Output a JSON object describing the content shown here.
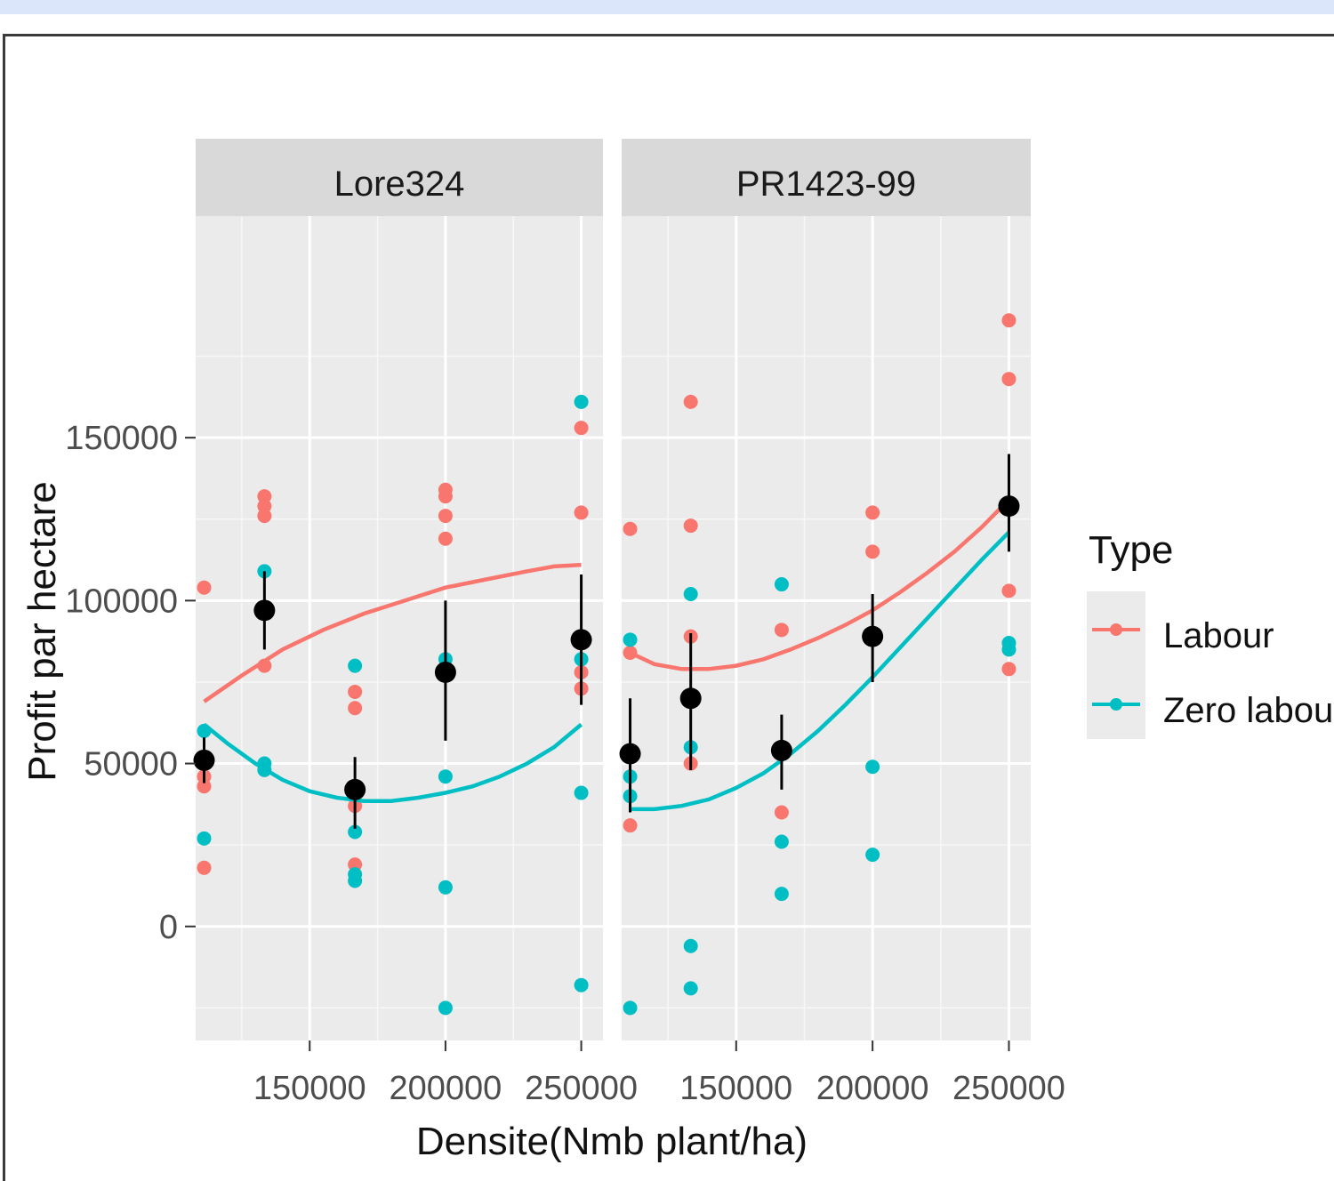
{
  "chart_data": {
    "type": "scatter",
    "title": "",
    "xlabel": "Densite(Nmb plant/ha)",
    "ylabel": "Profit par hectare",
    "xlim": [
      108000,
      258000
    ],
    "ylim": [
      -35000,
      218000
    ],
    "xticks": [
      150000,
      200000,
      250000
    ],
    "xtick_labels": [
      "150000",
      "200000",
      "250000"
    ],
    "yticks": [
      0,
      50000,
      100000,
      150000
    ],
    "ytick_labels": [
      "0",
      "50000",
      "100000",
      "150000"
    ],
    "grid": true,
    "legend": {
      "title": "Type",
      "placement": "right",
      "entries": [
        {
          "label": "Labour",
          "color": "#F8766D"
        },
        {
          "label": "Zero labour",
          "color": "#00BFC4"
        }
      ]
    },
    "panels": [
      {
        "label": "Lore324",
        "series": [
          {
            "name": "Labour",
            "color": "#F8766D",
            "points": [
              [
                111111,
                104000
              ],
              [
                111111,
                46000
              ],
              [
                111111,
                43000
              ],
              [
                111111,
                18000
              ],
              [
                133333,
                132000
              ],
              [
                133333,
                129000
              ],
              [
                133333,
                126000
              ],
              [
                133333,
                80000
              ],
              [
                166667,
                72000
              ],
              [
                166667,
                67000
              ],
              [
                166667,
                37000
              ],
              [
                166667,
                19000
              ],
              [
                200000,
                134000
              ],
              [
                200000,
                132000
              ],
              [
                200000,
                126000
              ],
              [
                200000,
                119000
              ],
              [
                250000,
                153000
              ],
              [
                250000,
                127000
              ],
              [
                250000,
                78000
              ],
              [
                250000,
                73000
              ]
            ],
            "smooth": [
              [
                111111,
                69000
              ],
              [
                125000,
                77000
              ],
              [
                140000,
                85000
              ],
              [
                155000,
                91000
              ],
              [
                170000,
                96000
              ],
              [
                185000,
                100000
              ],
              [
                200000,
                104000
              ],
              [
                215000,
                106500
              ],
              [
                230000,
                109000
              ],
              [
                240000,
                110500
              ],
              [
                250000,
                111000
              ]
            ]
          },
          {
            "name": "Zero labour",
            "color": "#00BFC4",
            "points": [
              [
                111111,
                60000
              ],
              [
                111111,
                27000
              ],
              [
                133333,
                109000
              ],
              [
                133333,
                50000
              ],
              [
                133333,
                48000
              ],
              [
                166667,
                80000
              ],
              [
                166667,
                29000
              ],
              [
                166667,
                16000
              ],
              [
                166667,
                14000
              ],
              [
                200000,
                82000
              ],
              [
                200000,
                46000
              ],
              [
                200000,
                12000
              ],
              [
                200000,
                -25000
              ],
              [
                250000,
                161000
              ],
              [
                250000,
                82000
              ],
              [
                250000,
                41000
              ],
              [
                250000,
                -18000
              ]
            ],
            "smooth": [
              [
                111111,
                62000
              ],
              [
                120000,
                56000
              ],
              [
                130000,
                50000
              ],
              [
                140000,
                45000
              ],
              [
                150000,
                41500
              ],
              [
                160000,
                39500
              ],
              [
                170000,
                38500
              ],
              [
                180000,
                38500
              ],
              [
                190000,
                39500
              ],
              [
                200000,
                41000
              ],
              [
                210000,
                43000
              ],
              [
                220000,
                46000
              ],
              [
                230000,
                50000
              ],
              [
                240000,
                55000
              ],
              [
                250000,
                62000
              ]
            ]
          }
        ],
        "means": [
          {
            "x": 111111,
            "y": 51000,
            "lo": 44000,
            "hi": 58000
          },
          {
            "x": 133333,
            "y": 97000,
            "lo": 85000,
            "hi": 109000
          },
          {
            "x": 166667,
            "y": 42000,
            "lo": 30000,
            "hi": 52000
          },
          {
            "x": 200000,
            "y": 78000,
            "lo": 57000,
            "hi": 100000
          },
          {
            "x": 250000,
            "y": 88000,
            "lo": 68000,
            "hi": 108000
          }
        ]
      },
      {
        "label": "PR1423-99",
        "series": [
          {
            "name": "Labour",
            "color": "#F8766D",
            "points": [
              [
                111111,
                122000
              ],
              [
                111111,
                84000
              ],
              [
                111111,
                31000
              ],
              [
                133333,
                161000
              ],
              [
                133333,
                123000
              ],
              [
                133333,
                89000
              ],
              [
                133333,
                50000
              ],
              [
                166667,
                91000
              ],
              [
                166667,
                35000
              ],
              [
                200000,
                127000
              ],
              [
                200000,
                115000
              ],
              [
                200000,
                90000
              ],
              [
                250000,
                186000
              ],
              [
                250000,
                168000
              ],
              [
                250000,
                103000
              ],
              [
                250000,
                79000
              ]
            ],
            "smooth": [
              [
                111111,
                84000
              ],
              [
                120000,
                80500
              ],
              [
                130000,
                79000
              ],
              [
                140000,
                79000
              ],
              [
                150000,
                80000
              ],
              [
                160000,
                82000
              ],
              [
                170000,
                85000
              ],
              [
                180000,
                88500
              ],
              [
                190000,
                92500
              ],
              [
                200000,
                97000
              ],
              [
                210000,
                102500
              ],
              [
                220000,
                108500
              ],
              [
                230000,
                115000
              ],
              [
                240000,
                122500
              ],
              [
                250000,
                131000
              ]
            ]
          },
          {
            "name": "Zero labour",
            "color": "#00BFC4",
            "points": [
              [
                111111,
                88000
              ],
              [
                111111,
                46000
              ],
              [
                111111,
                40000
              ],
              [
                111111,
                -25000
              ],
              [
                133333,
                102000
              ],
              [
                133333,
                55000
              ],
              [
                133333,
                -6000
              ],
              [
                133333,
                -19000
              ],
              [
                166667,
                105000
              ],
              [
                166667,
                26000
              ],
              [
                166667,
                10000
              ],
              [
                200000,
                49000
              ],
              [
                200000,
                22000
              ],
              [
                250000,
                87000
              ],
              [
                250000,
                85000
              ]
            ],
            "smooth": [
              [
                111111,
                36000
              ],
              [
                120000,
                36000
              ],
              [
                130000,
                37000
              ],
              [
                140000,
                39000
              ],
              [
                150000,
                42500
              ],
              [
                160000,
                47000
              ],
              [
                170000,
                53000
              ],
              [
                180000,
                60000
              ],
              [
                190000,
                68000
              ],
              [
                200000,
                76500
              ],
              [
                210000,
                85500
              ],
              [
                220000,
                94500
              ],
              [
                230000,
                103500
              ],
              [
                240000,
                112500
              ],
              [
                250000,
                121000
              ]
            ]
          }
        ],
        "means": [
          {
            "x": 111111,
            "y": 53000,
            "lo": 35000,
            "hi": 70000
          },
          {
            "x": 133333,
            "y": 70000,
            "lo": 48000,
            "hi": 90000
          },
          {
            "x": 166667,
            "y": 54000,
            "lo": 42000,
            "hi": 65000
          },
          {
            "x": 200000,
            "y": 89000,
            "lo": 75000,
            "hi": 102000
          },
          {
            "x": 250000,
            "y": 129000,
            "lo": 115000,
            "hi": 145000
          }
        ]
      }
    ]
  }
}
